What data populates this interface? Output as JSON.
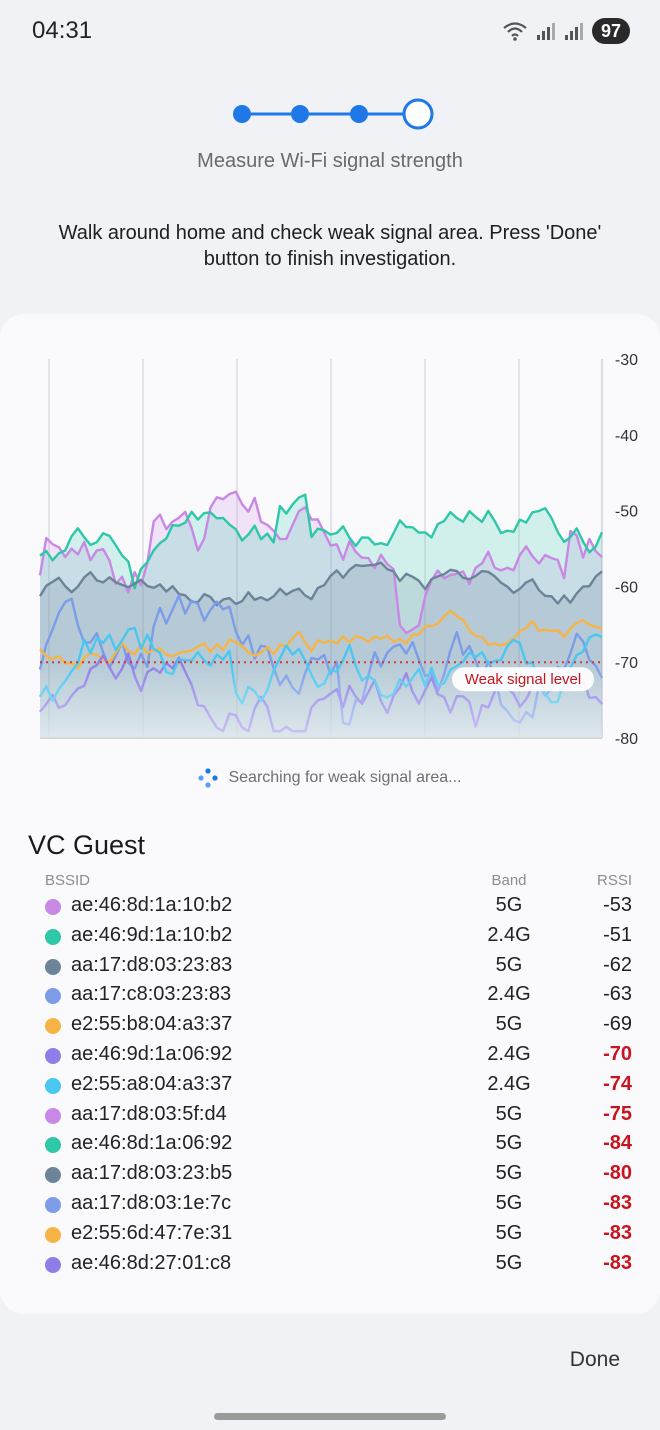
{
  "status_bar": {
    "time": "04:31",
    "battery": "97"
  },
  "wizard": {
    "total_steps": 4,
    "current_step": 4,
    "step_label": "Measure Wi-Fi signal strength"
  },
  "instruction": "Walk around home and check weak signal area. Press 'Done' button to finish investigation.",
  "chart_data": {
    "type": "line",
    "y_ticks": [
      "-30",
      "-40",
      "-50",
      "-60",
      "-70",
      "-80"
    ],
    "ylim": [
      -80,
      -30
    ],
    "weak_threshold": -70,
    "weak_label": "Weak signal level",
    "grid": "vertical",
    "series_colors": [
      "#c889e6",
      "#2ec7a7",
      "#6b8498",
      "#7c9ce8",
      "#f6b446",
      "#8f7de8",
      "#49c7ef"
    ]
  },
  "searching_text": "Searching for weak signal area...",
  "network_name": "VC Guest",
  "columns": {
    "bssid": "BSSID",
    "band": "Band",
    "rssi": "RSSI"
  },
  "access_points": [
    {
      "bssid": "ae:46:8d:1a:10:b2",
      "band": "5G",
      "rssi": "-53",
      "color": "#c889e6",
      "weak": false
    },
    {
      "bssid": "ae:46:9d:1a:10:b2",
      "band": "2.4G",
      "rssi": "-51",
      "color": "#2ec7a7",
      "weak": false
    },
    {
      "bssid": "aa:17:d8:03:23:83",
      "band": "5G",
      "rssi": "-62",
      "color": "#6b8498",
      "weak": false
    },
    {
      "bssid": "aa:17:c8:03:23:83",
      "band": "2.4G",
      "rssi": "-63",
      "color": "#7c9ce8",
      "weak": false
    },
    {
      "bssid": "e2:55:b8:04:a3:37",
      "band": "5G",
      "rssi": "-69",
      "color": "#f6b446",
      "weak": false
    },
    {
      "bssid": "ae:46:9d:1a:06:92",
      "band": "2.4G",
      "rssi": "-70",
      "color": "#8f7de8",
      "weak": true
    },
    {
      "bssid": "e2:55:a8:04:a3:37",
      "band": "2.4G",
      "rssi": "-74",
      "color": "#49c7ef",
      "weak": true
    },
    {
      "bssid": "aa:17:d8:03:5f:d4",
      "band": "5G",
      "rssi": "-75",
      "color": "#c889e6",
      "weak": true
    },
    {
      "bssid": "ae:46:8d:1a:06:92",
      "band": "5G",
      "rssi": "-84",
      "color": "#2ec7a7",
      "weak": true
    },
    {
      "bssid": "aa:17:d8:03:23:b5",
      "band": "5G",
      "rssi": "-80",
      "color": "#6b8498",
      "weak": true
    },
    {
      "bssid": "aa:17:d8:03:1e:7c",
      "band": "5G",
      "rssi": "-83",
      "color": "#7c9ce8",
      "weak": true
    },
    {
      "bssid": "e2:55:6d:47:7e:31",
      "band": "5G",
      "rssi": "-83",
      "color": "#f6b446",
      "weak": true
    },
    {
      "bssid": "ae:46:8d:27:01:c8",
      "band": "5G",
      "rssi": "-83",
      "color": "#8f7de8",
      "weak": true
    }
  ],
  "done_label": "Done"
}
